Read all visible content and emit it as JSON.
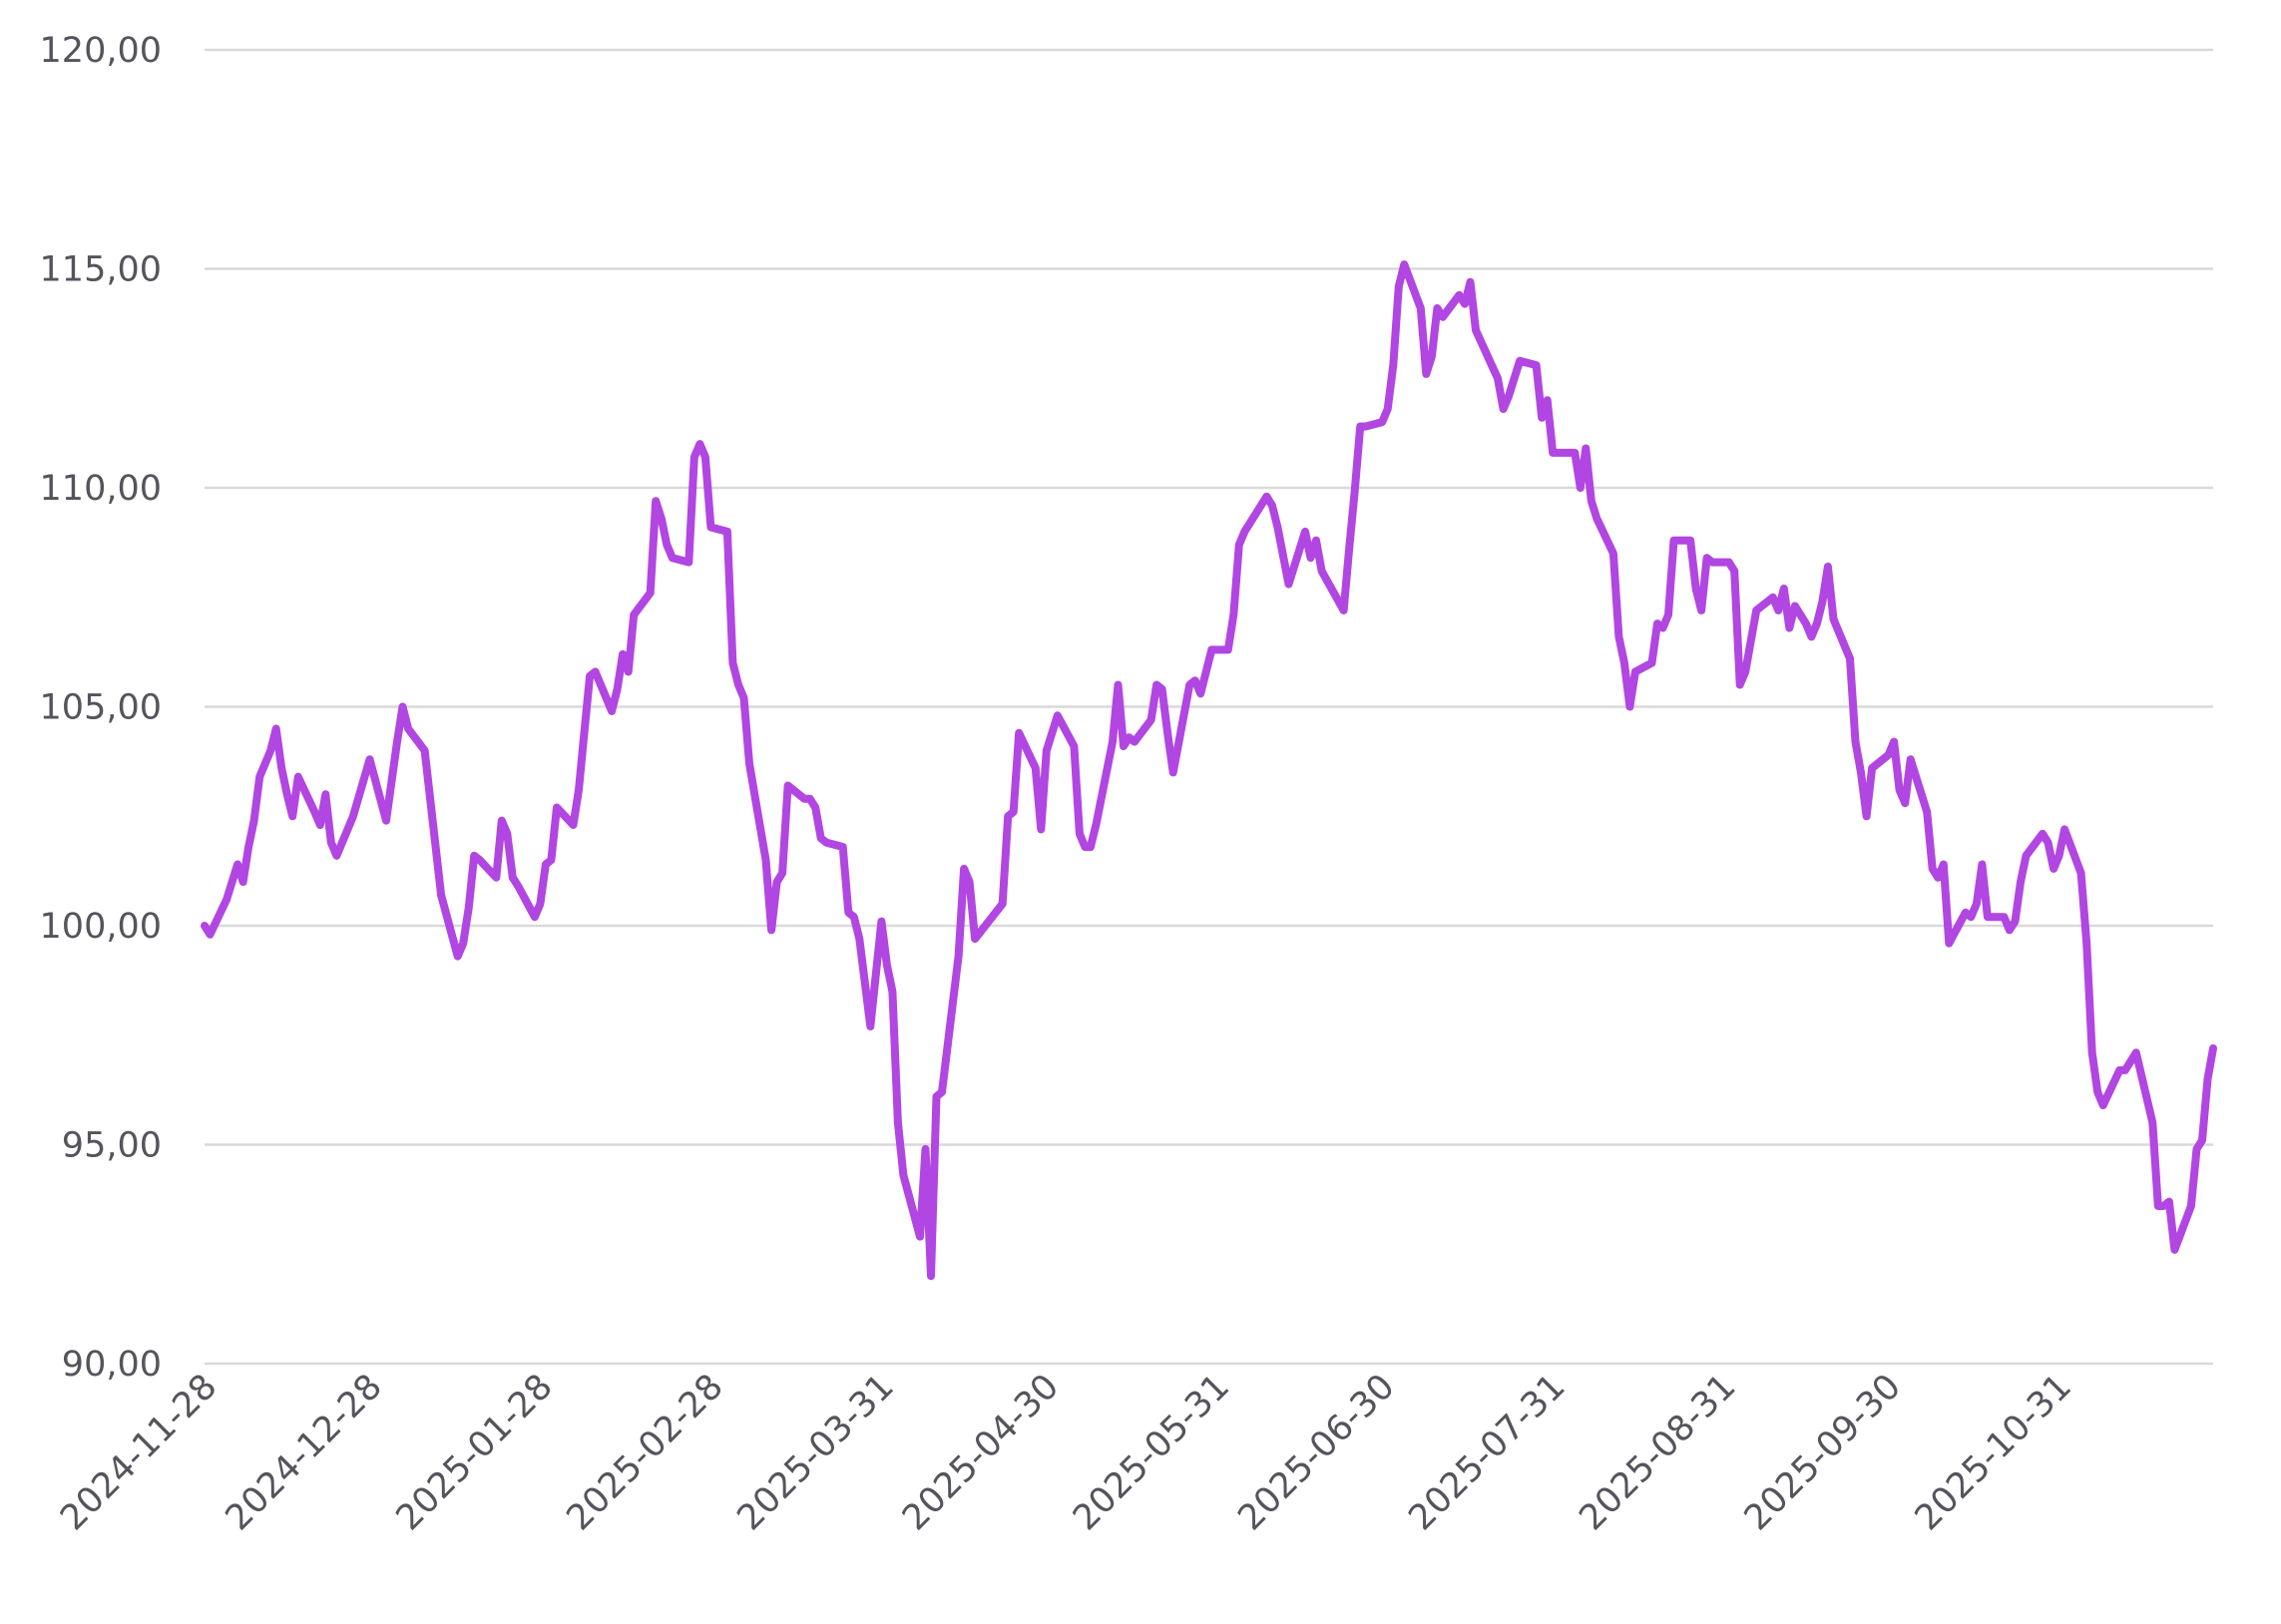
{
  "chart_data": {
    "type": "line",
    "title": "",
    "xlabel": "",
    "ylabel": "",
    "ylim": [
      90,
      120
    ],
    "y_ticks": [
      90,
      95,
      100,
      105,
      110,
      115,
      120
    ],
    "y_tick_labels": [
      "90,00",
      "95,00",
      "100,00",
      "105,00",
      "110,00",
      "115,00",
      "120,00"
    ],
    "x_range": [
      "2024-11-28",
      "2025-11-28"
    ],
    "x_ticks": [
      "2024-11-28",
      "2024-12-28",
      "2025-01-28",
      "2025-02-28",
      "2025-03-31",
      "2025-04-30",
      "2025-05-31",
      "2025-06-30",
      "2025-07-31",
      "2025-08-31",
      "2025-09-30",
      "2025-10-31"
    ],
    "grid": "horizontal",
    "legend": "none",
    "colors": {
      "series": "#b146e2",
      "grid": "#d9d9dc",
      "text": "#55535c"
    },
    "series": [
      {
        "points": [
          [
            "2024-11-28",
            100.0
          ],
          [
            "2024-11-29",
            99.8
          ],
          [
            "2024-12-02",
            100.6
          ],
          [
            "2024-12-03",
            101.0
          ],
          [
            "2024-12-04",
            101.4
          ],
          [
            "2024-12-05",
            101.0
          ],
          [
            "2024-12-06",
            101.8
          ],
          [
            "2024-12-07",
            102.4
          ],
          [
            "2024-12-08",
            103.4
          ],
          [
            "2024-12-10",
            104.0
          ],
          [
            "2024-12-11",
            104.5
          ],
          [
            "2024-12-12",
            103.6
          ],
          [
            "2024-12-13",
            103.0
          ],
          [
            "2024-12-14",
            102.5
          ],
          [
            "2024-12-15",
            103.4
          ],
          [
            "2024-12-18",
            102.6
          ],
          [
            "2024-12-19",
            102.3
          ],
          [
            "2024-12-20",
            103.0
          ],
          [
            "2024-12-21",
            101.9
          ],
          [
            "2024-12-22",
            101.6
          ],
          [
            "2024-12-25",
            102.5
          ],
          [
            "2024-12-28",
            103.8
          ],
          [
            "2024-12-31",
            102.4
          ],
          [
            "2025-01-02",
            104.2
          ],
          [
            "2025-01-03",
            105.0
          ],
          [
            "2025-01-04",
            104.5
          ],
          [
            "2025-01-07",
            104.0
          ],
          [
            "2025-01-09",
            101.8
          ],
          [
            "2025-01-10",
            100.7
          ],
          [
            "2025-01-13",
            99.3
          ],
          [
            "2025-01-14",
            99.6
          ],
          [
            "2025-01-15",
            100.4
          ],
          [
            "2025-01-16",
            101.6
          ],
          [
            "2025-01-17",
            101.5
          ],
          [
            "2025-01-20",
            101.1
          ],
          [
            "2025-01-21",
            102.4
          ],
          [
            "2025-01-22",
            102.1
          ],
          [
            "2025-01-23",
            101.1
          ],
          [
            "2025-01-24",
            100.9
          ],
          [
            "2025-01-27",
            100.2
          ],
          [
            "2025-01-28",
            100.5
          ],
          [
            "2025-01-29",
            101.4
          ],
          [
            "2025-01-30",
            101.5
          ],
          [
            "2025-01-31",
            102.7
          ],
          [
            "2025-02-03",
            102.3
          ],
          [
            "2025-02-04",
            103.1
          ],
          [
            "2025-02-05",
            104.4
          ],
          [
            "2025-02-06",
            105.7
          ],
          [
            "2025-02-07",
            105.8
          ],
          [
            "2025-02-10",
            104.9
          ],
          [
            "2025-02-11",
            105.4
          ],
          [
            "2025-02-12",
            106.2
          ],
          [
            "2025-02-13",
            105.8
          ],
          [
            "2025-02-14",
            107.1
          ],
          [
            "2025-02-17",
            107.6
          ],
          [
            "2025-02-18",
            109.7
          ],
          [
            "2025-02-19",
            109.3
          ],
          [
            "2025-02-20",
            108.7
          ],
          [
            "2025-02-21",
            108.4
          ],
          [
            "2025-02-24",
            108.3
          ],
          [
            "2025-02-25",
            110.7
          ],
          [
            "2025-02-26",
            111.0
          ],
          [
            "2025-02-27",
            110.7
          ],
          [
            "2025-02-28",
            109.1
          ],
          [
            "2025-03-03",
            109.0
          ],
          [
            "2025-03-04",
            106.0
          ],
          [
            "2025-03-05",
            105.5
          ],
          [
            "2025-03-06",
            105.2
          ],
          [
            "2025-03-07",
            103.7
          ],
          [
            "2025-03-10",
            101.5
          ],
          [
            "2025-03-11",
            99.9
          ],
          [
            "2025-03-12",
            101.0
          ],
          [
            "2025-03-13",
            101.2
          ],
          [
            "2025-03-14",
            103.2
          ],
          [
            "2025-03-17",
            102.9
          ],
          [
            "2025-03-18",
            102.9
          ],
          [
            "2025-03-19",
            102.7
          ],
          [
            "2025-03-20",
            102.0
          ],
          [
            "2025-03-21",
            101.9
          ],
          [
            "2025-03-24",
            101.8
          ],
          [
            "2025-03-25",
            100.3
          ],
          [
            "2025-03-26",
            100.2
          ],
          [
            "2025-03-27",
            99.7
          ],
          [
            "2025-03-28",
            98.7
          ],
          [
            "2025-03-29",
            97.7
          ],
          [
            "2025-03-31",
            100.1
          ],
          [
            "2025-04-01",
            99.1
          ],
          [
            "2025-04-02",
            98.5
          ],
          [
            "2025-04-03",
            95.5
          ],
          [
            "2025-04-04",
            94.3
          ],
          [
            "2025-04-07",
            92.9
          ],
          [
            "2025-04-08",
            94.9
          ],
          [
            "2025-04-09",
            92.0
          ],
          [
            "2025-04-10",
            96.1
          ],
          [
            "2025-04-11",
            96.2
          ],
          [
            "2025-04-14",
            99.3
          ],
          [
            "2025-04-15",
            101.3
          ],
          [
            "2025-04-16",
            101.0
          ],
          [
            "2025-04-17",
            99.7
          ],
          [
            "2025-04-22",
            100.5
          ],
          [
            "2025-04-23",
            102.5
          ],
          [
            "2025-04-24",
            102.6
          ],
          [
            "2025-04-25",
            104.4
          ],
          [
            "2025-04-28",
            103.6
          ],
          [
            "2025-04-29",
            102.2
          ],
          [
            "2025-04-30",
            104.0
          ],
          [
            "2025-05-02",
            104.8
          ],
          [
            "2025-05-05",
            104.1
          ],
          [
            "2025-05-06",
            102.1
          ],
          [
            "2025-05-07",
            101.8
          ],
          [
            "2025-05-08",
            101.8
          ],
          [
            "2025-05-09",
            102.3
          ],
          [
            "2025-05-12",
            104.2
          ],
          [
            "2025-05-13",
            105.5
          ],
          [
            "2025-05-14",
            104.1
          ],
          [
            "2025-05-15",
            104.3
          ],
          [
            "2025-05-16",
            104.2
          ],
          [
            "2025-05-19",
            104.7
          ],
          [
            "2025-05-20",
            105.5
          ],
          [
            "2025-05-21",
            105.4
          ],
          [
            "2025-05-22",
            104.4
          ],
          [
            "2025-05-23",
            103.5
          ],
          [
            "2025-05-26",
            105.5
          ],
          [
            "2025-05-27",
            105.6
          ],
          [
            "2025-05-28",
            105.3
          ],
          [
            "2025-05-30",
            106.3
          ],
          [
            "2025-06-02",
            106.3
          ],
          [
            "2025-06-03",
            107.1
          ],
          [
            "2025-06-04",
            108.7
          ],
          [
            "2025-06-05",
            109.0
          ],
          [
            "2025-06-09",
            109.8
          ],
          [
            "2025-06-10",
            109.6
          ],
          [
            "2025-06-11",
            109.1
          ],
          [
            "2025-06-13",
            107.8
          ],
          [
            "2025-06-16",
            109.0
          ],
          [
            "2025-06-17",
            108.4
          ],
          [
            "2025-06-18",
            108.8
          ],
          [
            "2025-06-19",
            108.1
          ],
          [
            "2025-06-23",
            107.2
          ],
          [
            "2025-06-24",
            108.6
          ],
          [
            "2025-06-25",
            109.9
          ],
          [
            "2025-06-26",
            111.4
          ],
          [
            "2025-06-27",
            111.4
          ],
          [
            "2025-06-30",
            111.5
          ],
          [
            "2025-07-01",
            111.8
          ],
          [
            "2025-07-02",
            112.8
          ],
          [
            "2025-07-03",
            114.6
          ],
          [
            "2025-07-04",
            115.1
          ],
          [
            "2025-07-07",
            114.1
          ],
          [
            "2025-07-08",
            112.6
          ],
          [
            "2025-07-09",
            113.0
          ],
          [
            "2025-07-10",
            114.1
          ],
          [
            "2025-07-11",
            113.9
          ],
          [
            "2025-07-14",
            114.4
          ],
          [
            "2025-07-15",
            114.2
          ],
          [
            "2025-07-16",
            114.7
          ],
          [
            "2025-07-17",
            113.6
          ],
          [
            "2025-07-21",
            112.5
          ],
          [
            "2025-07-22",
            111.8
          ],
          [
            "2025-07-23",
            112.1
          ],
          [
            "2025-07-25",
            112.9
          ],
          [
            "2025-07-28",
            112.8
          ],
          [
            "2025-07-29",
            111.6
          ],
          [
            "2025-07-30",
            112.0
          ],
          [
            "2025-07-31",
            110.8
          ],
          [
            "2025-08-01",
            110.8
          ],
          [
            "2025-08-04",
            110.8
          ],
          [
            "2025-08-05",
            110.0
          ],
          [
            "2025-08-06",
            110.9
          ],
          [
            "2025-08-07",
            109.7
          ],
          [
            "2025-08-08",
            109.3
          ],
          [
            "2025-08-11",
            108.5
          ],
          [
            "2025-08-12",
            106.6
          ],
          [
            "2025-08-13",
            106.0
          ],
          [
            "2025-08-14",
            105.0
          ],
          [
            "2025-08-15",
            105.8
          ],
          [
            "2025-08-18",
            106.0
          ],
          [
            "2025-08-19",
            106.9
          ],
          [
            "2025-08-20",
            106.8
          ],
          [
            "2025-08-21",
            107.1
          ],
          [
            "2025-08-22",
            108.8
          ],
          [
            "2025-08-25",
            108.8
          ],
          [
            "2025-08-26",
            107.7
          ],
          [
            "2025-08-27",
            107.2
          ],
          [
            "2025-08-28",
            108.4
          ],
          [
            "2025-08-29",
            108.3
          ],
          [
            "2025-09-01",
            108.3
          ],
          [
            "2025-09-02",
            108.1
          ],
          [
            "2025-09-03",
            105.5
          ],
          [
            "2025-09-04",
            105.8
          ],
          [
            "2025-09-05",
            106.5
          ],
          [
            "2025-09-06",
            107.2
          ],
          [
            "2025-09-08",
            107.4
          ],
          [
            "2025-09-09",
            107.5
          ],
          [
            "2025-09-10",
            107.2
          ],
          [
            "2025-09-11",
            107.7
          ],
          [
            "2025-09-12",
            106.8
          ],
          [
            "2025-09-13",
            107.3
          ],
          [
            "2025-09-15",
            106.9
          ],
          [
            "2025-09-16",
            106.6
          ],
          [
            "2025-09-17",
            106.9
          ],
          [
            "2025-09-18",
            107.4
          ],
          [
            "2025-09-19",
            108.2
          ],
          [
            "2025-09-20",
            107.0
          ],
          [
            "2025-09-23",
            106.1
          ],
          [
            "2025-09-24",
            104.2
          ],
          [
            "2025-09-25",
            103.5
          ],
          [
            "2025-09-26",
            102.5
          ],
          [
            "2025-09-27",
            103.6
          ],
          [
            "2025-09-30",
            103.9
          ],
          [
            "2025-10-01",
            104.2
          ],
          [
            "2025-10-02",
            103.1
          ],
          [
            "2025-10-03",
            102.8
          ],
          [
            "2025-10-04",
            103.8
          ],
          [
            "2025-10-07",
            102.6
          ],
          [
            "2025-10-08",
            101.3
          ],
          [
            "2025-10-09",
            101.1
          ],
          [
            "2025-10-10",
            101.4
          ],
          [
            "2025-10-11",
            99.6
          ],
          [
            "2025-10-14",
            100.3
          ],
          [
            "2025-10-15",
            100.2
          ],
          [
            "2025-10-16",
            100.5
          ],
          [
            "2025-10-17",
            101.4
          ],
          [
            "2025-10-18",
            100.2
          ],
          [
            "2025-10-21",
            100.2
          ],
          [
            "2025-10-22",
            99.9
          ],
          [
            "2025-10-23",
            100.1
          ],
          [
            "2025-10-24",
            101.0
          ],
          [
            "2025-10-25",
            101.6
          ],
          [
            "2025-10-28",
            102.1
          ],
          [
            "2025-10-29",
            101.9
          ],
          [
            "2025-10-30",
            101.3
          ],
          [
            "2025-10-31",
            101.6
          ],
          [
            "2025-11-01",
            102.2
          ],
          [
            "2025-11-04",
            101.2
          ],
          [
            "2025-11-05",
            99.6
          ],
          [
            "2025-11-06",
            97.1
          ],
          [
            "2025-11-07",
            96.2
          ],
          [
            "2025-11-08",
            95.9
          ],
          [
            "2025-11-11",
            96.7
          ],
          [
            "2025-11-12",
            96.7
          ],
          [
            "2025-11-13",
            96.9
          ],
          [
            "2025-11-14",
            97.1
          ],
          [
            "2025-11-17",
            95.5
          ],
          [
            "2025-11-18",
            93.6
          ],
          [
            "2025-11-19",
            93.6
          ],
          [
            "2025-11-20",
            93.7
          ],
          [
            "2025-11-21",
            92.6
          ],
          [
            "2025-11-24",
            93.6
          ],
          [
            "2025-11-25",
            94.9
          ],
          [
            "2025-11-26",
            95.1
          ],
          [
            "2025-11-27",
            96.5
          ],
          [
            "2025-11-28",
            97.2
          ]
        ]
      }
    ]
  }
}
